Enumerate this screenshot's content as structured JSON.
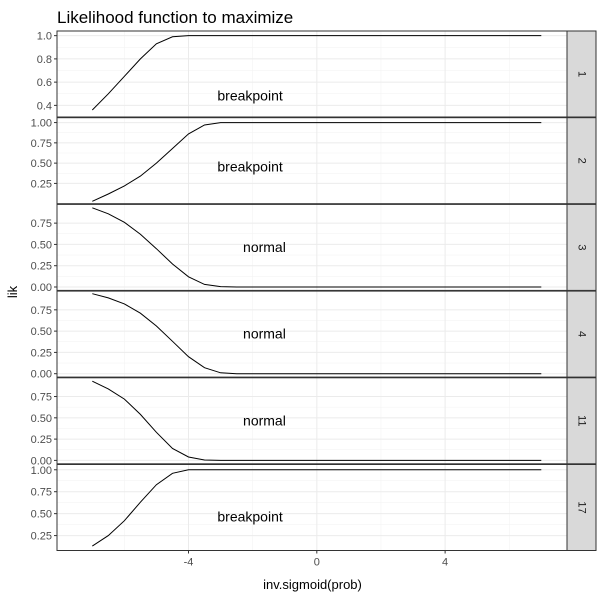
{
  "chart_data": {
    "type": "line",
    "title": "Likelihood function to maximize",
    "xlabel": "inv.sigmoid(prob)",
    "ylabel": "lik",
    "xlim": [
      -8.1,
      7.8
    ],
    "x_ticks": [
      -4,
      0,
      4
    ],
    "x_tick_labels": [
      "-4",
      "0",
      "4"
    ],
    "grid": true,
    "facet_strip": "right",
    "panels": [
      {
        "strip": "1",
        "annotation": "breakpoint",
        "annotation_x": -3.1,
        "annotation_y": 0.485,
        "ylim": [
          0.3,
          1.04
        ],
        "y_ticks": [
          0.4,
          0.6,
          0.8,
          1.0
        ],
        "y_tick_labels": [
          "0.4",
          "0.6",
          "0.8",
          "1.0"
        ],
        "x": [
          -7,
          -6.5,
          -6,
          -5.5,
          -5,
          -4.5,
          -4,
          -3.5,
          -3,
          0,
          3,
          7
        ],
        "y": [
          0.36,
          0.5,
          0.65,
          0.8,
          0.93,
          0.99,
          1.0,
          1.0,
          1.0,
          1.0,
          1.0,
          1.0
        ]
      },
      {
        "strip": "2",
        "annotation": "breakpoint",
        "annotation_x": -3.1,
        "annotation_y": 0.46,
        "ylim": [
          0.0,
          1.06
        ],
        "y_ticks": [
          0.25,
          0.5,
          0.75,
          1.0
        ],
        "y_tick_labels": [
          "0.25",
          "0.50",
          "0.75",
          "1.00"
        ],
        "x": [
          -7,
          -6.5,
          -6,
          -5.5,
          -5,
          -4.5,
          -4,
          -3.5,
          -3,
          0,
          3,
          7
        ],
        "y": [
          0.03,
          0.12,
          0.22,
          0.34,
          0.5,
          0.68,
          0.86,
          0.97,
          1.0,
          1.0,
          1.0,
          1.0
        ]
      },
      {
        "strip": "3",
        "annotation": "normal",
        "annotation_x": -2.3,
        "annotation_y": 0.47,
        "ylim": [
          -0.04,
          0.97
        ],
        "y_ticks": [
          0.0,
          0.25,
          0.5,
          0.75
        ],
        "y_tick_labels": [
          "0.00",
          "0.25",
          "0.50",
          "0.75"
        ],
        "x": [
          -7,
          -6.5,
          -6,
          -5.5,
          -5,
          -4.5,
          -4,
          -3.5,
          -3,
          -2.5,
          0,
          3,
          7
        ],
        "y": [
          0.93,
          0.86,
          0.76,
          0.62,
          0.45,
          0.27,
          0.12,
          0.03,
          0.005,
          0.0,
          0.0,
          0.0,
          0.0
        ]
      },
      {
        "strip": "4",
        "annotation": "normal",
        "annotation_x": -2.3,
        "annotation_y": 0.47,
        "ylim": [
          -0.04,
          0.97
        ],
        "y_ticks": [
          0.0,
          0.25,
          0.5,
          0.75
        ],
        "y_tick_labels": [
          "0.00",
          "0.25",
          "0.50",
          "0.75"
        ],
        "x": [
          -7,
          -6.5,
          -6,
          -5.5,
          -5,
          -4.5,
          -4,
          -3.5,
          -3,
          -2.5,
          0,
          3,
          7
        ],
        "y": [
          0.94,
          0.89,
          0.82,
          0.71,
          0.56,
          0.38,
          0.2,
          0.07,
          0.01,
          0.0,
          0.0,
          0.0,
          0.0
        ]
      },
      {
        "strip": "11",
        "annotation": "normal",
        "annotation_x": -2.3,
        "annotation_y": 0.47,
        "ylim": [
          -0.04,
          0.97
        ],
        "y_ticks": [
          0.0,
          0.25,
          0.5,
          0.75
        ],
        "y_tick_labels": [
          "0.00",
          "0.25",
          "0.50",
          "0.75"
        ],
        "x": [
          -7,
          -6.5,
          -6,
          -5.5,
          -5,
          -4.5,
          -4,
          -3.5,
          -3,
          -2.5,
          0,
          3,
          7
        ],
        "y": [
          0.93,
          0.84,
          0.72,
          0.54,
          0.33,
          0.14,
          0.04,
          0.005,
          0.0,
          0.0,
          0.0,
          0.0,
          0.0
        ]
      },
      {
        "strip": "17",
        "annotation": "breakpoint",
        "annotation_x": -3.1,
        "annotation_y": 0.47,
        "ylim": [
          0.08,
          1.06
        ],
        "y_ticks": [
          0.25,
          0.5,
          0.75,
          1.0
        ],
        "y_tick_labels": [
          "0.25",
          "0.50",
          "0.75",
          "1.00"
        ],
        "x": [
          -7,
          -6.5,
          -6,
          -5.5,
          -5,
          -4.5,
          -4,
          -3.5,
          -3,
          0,
          3,
          7
        ],
        "y": [
          0.13,
          0.25,
          0.42,
          0.63,
          0.83,
          0.96,
          1.0,
          1.0,
          1.0,
          1.0,
          1.0,
          1.0
        ]
      }
    ]
  }
}
